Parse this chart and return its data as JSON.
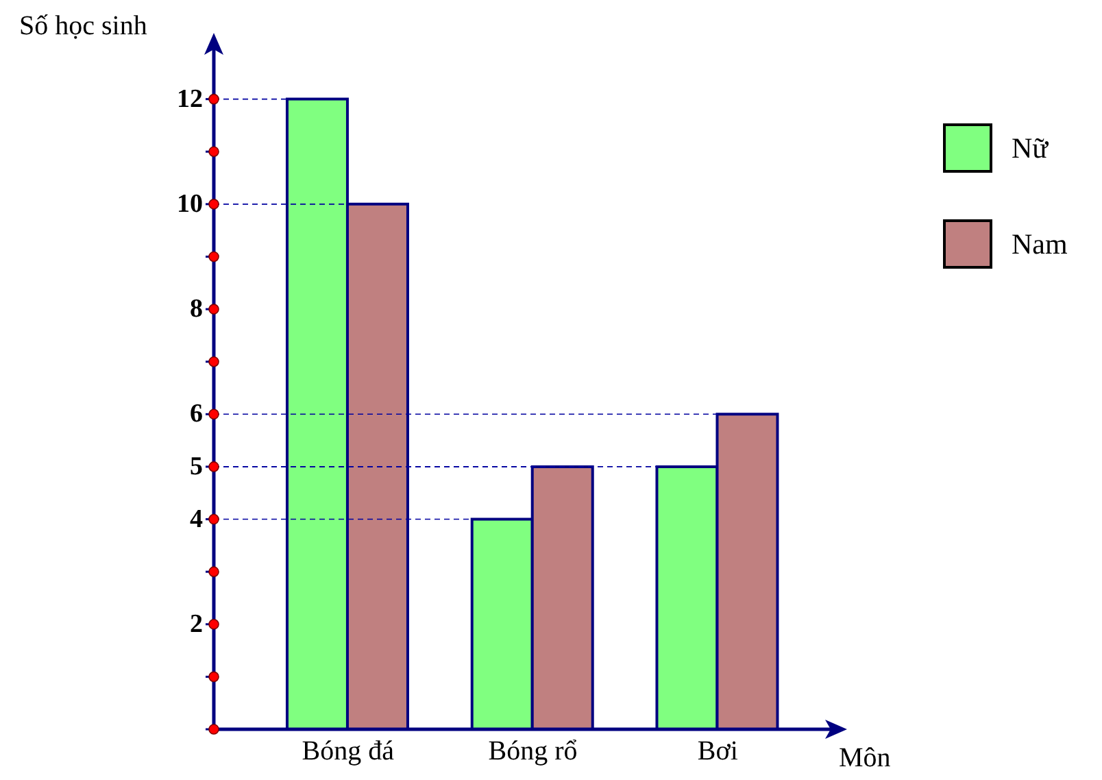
{
  "chart_data": {
    "type": "bar",
    "xlabel": "Môn",
    "ylabel": "Số học sinh",
    "categories": [
      "Bóng đá",
      "Bóng rổ",
      "Bơi"
    ],
    "series": [
      {
        "name": "Nữ",
        "color": "#80ff80",
        "values": [
          12,
          4,
          5
        ]
      },
      {
        "name": "Nam",
        "color": "#c08080",
        "values": [
          10,
          5,
          6
        ]
      }
    ],
    "ylim": [
      0,
      13
    ],
    "yticks": [
      {
        "value": 0,
        "label": null
      },
      {
        "value": 1,
        "label": null
      },
      2,
      {
        "value": 3,
        "label": null
      },
      4,
      5,
      6,
      {
        "value": 7,
        "label": null
      },
      8,
      {
        "value": 9,
        "label": null
      },
      10,
      {
        "value": 11,
        "label": null
      },
      12
    ],
    "grid": "y",
    "legend": "right"
  }
}
